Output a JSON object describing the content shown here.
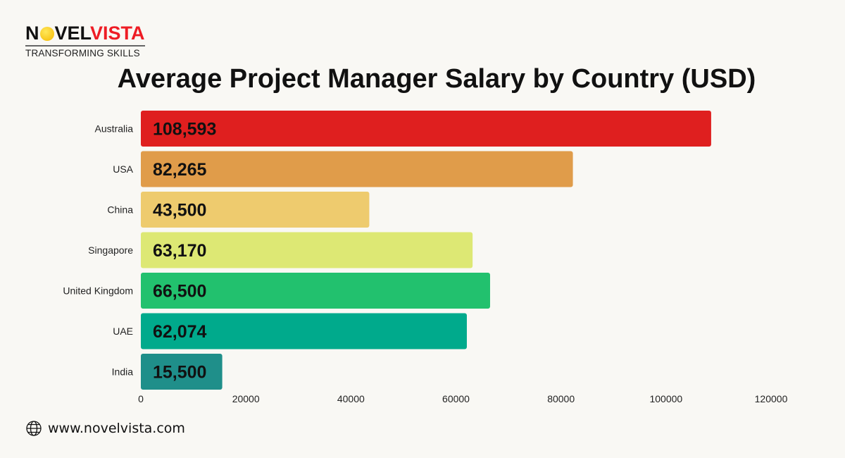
{
  "logo": {
    "text_dark_1": "N",
    "text_dark_2": "VEL",
    "text_red": "VISTA",
    "tagline": "TRANSFORMING SKILLS"
  },
  "footer": {
    "icon": "globe-icon",
    "url": "www.novelvista.com"
  },
  "chart_data": {
    "type": "bar",
    "orientation": "horizontal",
    "title": "Average Project Manager Salary by Country (USD)",
    "categories": [
      "Australia",
      "USA",
      "China",
      "Singapore",
      "United Kingdom",
      "UAE",
      "India"
    ],
    "values": [
      108593,
      82265,
      43500,
      63170,
      66500,
      62074,
      15500
    ],
    "data_labels": [
      "108,593",
      "82,265",
      "43,500",
      "63,170",
      "66,500",
      "62,074",
      "15,500"
    ],
    "colors": [
      "#df1f1f",
      "#e09c4a",
      "#eecb6e",
      "#dde874",
      "#22c16e",
      "#00aa8c",
      "#1f8f8a"
    ],
    "xlim": [
      0,
      120000
    ],
    "xticks": [
      "0",
      "20000",
      "40000",
      "60000",
      "80000",
      "100000",
      "120000"
    ],
    "grid": false,
    "legend": "none"
  }
}
